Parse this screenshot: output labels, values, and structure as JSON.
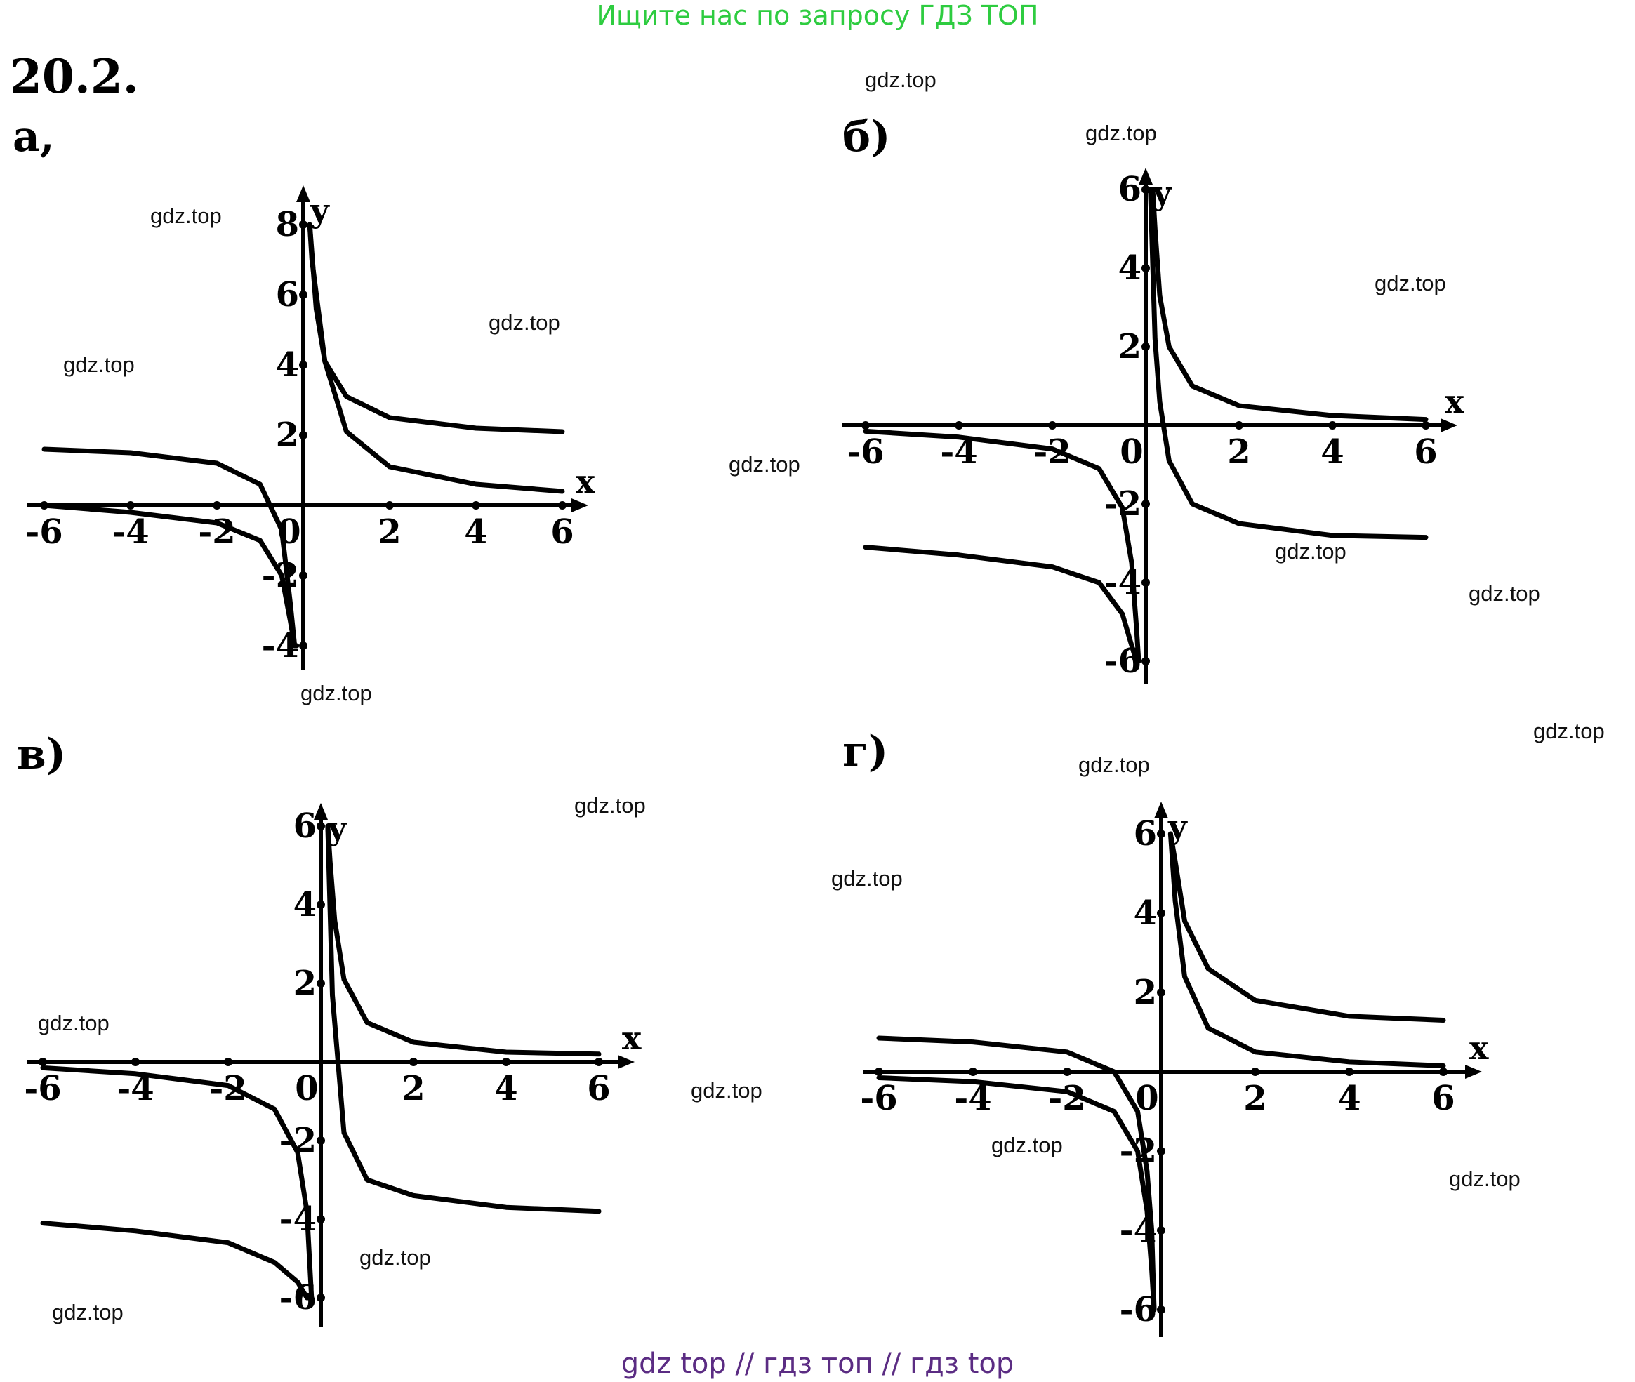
{
  "header": {
    "banner": "Ищите нас по запросу ГДЗ ТОП",
    "problem_number": "20.2."
  },
  "footer": {
    "banner": "gdz top  //  гдз топ  //  гдз top"
  },
  "watermarks": [
    "gdz.top",
    "gdz.top",
    "gdz.top",
    "gdz.top",
    "gdz.top",
    "gdz.top",
    "gdz.top",
    "gdz.top",
    "gdz.top",
    "gdz.top",
    "gdz.top",
    "gdz.top",
    "gdz.top",
    "gdz.top",
    "gdz.top",
    "gdz.top",
    "gdz.top",
    "gdz.top",
    "gdz.top",
    "gdz.top"
  ],
  "colors": {
    "banner": "#2ecc40",
    "footer": "#5b2c83",
    "ink": "#000000"
  },
  "chart_data": [
    {
      "type": "line",
      "panel_label": "а,",
      "xlabel": "x",
      "ylabel": "y",
      "xlim": [
        -6,
        6
      ],
      "ylim": [
        -4,
        8
      ],
      "x_ticks": [
        "-6",
        "-4",
        "-2",
        "0",
        "2",
        "4",
        "6"
      ],
      "y_ticks": [
        "8",
        "6",
        "4",
        "2",
        "-2",
        "-4"
      ],
      "grid": false,
      "series": [
        {
          "x": [
            -6,
            -4,
            -2,
            -1,
            -0.5,
            -0.3,
            -0.2,
            -0.15
          ],
          "y": [
            0,
            -0.2,
            -0.5,
            -1,
            -2,
            -3.3,
            -4,
            -4
          ]
        },
        {
          "x": [
            0.15,
            0.2,
            0.5,
            1,
            2,
            4,
            6
          ],
          "y": [
            8,
            7,
            4.1,
            2.1,
            1.1,
            0.6,
            0.4
          ]
        },
        {
          "x": [
            -6,
            -4,
            -2,
            -1,
            -0.5,
            -0.3,
            -0.2
          ],
          "y": [
            1.6,
            1.5,
            1.2,
            0.6,
            -0.7,
            -2.8,
            -4
          ]
        },
        {
          "x": [
            0.15,
            0.2,
            0.3,
            0.5,
            1,
            2,
            4,
            6
          ],
          "y": [
            8,
            7.2,
            5.6,
            4.1,
            3.1,
            2.5,
            2.2,
            2.1
          ]
        }
      ]
    },
    {
      "type": "line",
      "panel_label": "б)",
      "xlabel": "x",
      "ylabel": "y",
      "xlim": [
        -6,
        6
      ],
      "ylim": [
        -6,
        6
      ],
      "x_ticks": [
        "-6",
        "-4",
        "-2",
        "0",
        "2",
        "4",
        "6"
      ],
      "y_ticks": [
        "6",
        "4",
        "2",
        "-2",
        "-4",
        "-6"
      ],
      "grid": false,
      "series": [
        {
          "x": [
            -6,
            -4,
            -2,
            -1,
            -0.5,
            -0.3,
            -0.2,
            -0.15
          ],
          "y": [
            -0.15,
            -0.3,
            -0.6,
            -1.1,
            -2.1,
            -3.5,
            -5.1,
            -6
          ]
        },
        {
          "x": [
            0.15,
            0.2,
            0.3,
            0.5,
            1,
            2,
            4,
            6
          ],
          "y": [
            6,
            5,
            3.3,
            2,
            1,
            0.5,
            0.25,
            0.15
          ]
        },
        {
          "x": [
            -6,
            -4,
            -2,
            -1,
            -0.5,
            -0.3,
            -0.2
          ],
          "y": [
            -3.1,
            -3.3,
            -3.6,
            -4,
            -4.8,
            -5.6,
            -6
          ]
        },
        {
          "x": [
            0.1,
            0.2,
            0.3,
            0.5,
            1,
            2,
            4,
            6
          ],
          "y": [
            6,
            2.2,
            0.6,
            -0.9,
            -2,
            -2.5,
            -2.8,
            -2.85
          ]
        }
      ]
    },
    {
      "type": "line",
      "panel_label": "в)",
      "xlabel": "x",
      "ylabel": "y",
      "xlim": [
        -6,
        6
      ],
      "ylim": [
        -6,
        6
      ],
      "x_ticks": [
        "-6",
        "-4",
        "-2",
        "0",
        "2",
        "4",
        "6"
      ],
      "y_ticks": [
        "6",
        "4",
        "2",
        "-2",
        "-4",
        "-6"
      ],
      "grid": false,
      "series": [
        {
          "x": [
            -6,
            -4,
            -2,
            -1,
            -0.5,
            -0.3,
            -0.2
          ],
          "y": [
            -0.15,
            -0.3,
            -0.6,
            -1.2,
            -2.3,
            -3.8,
            -6
          ]
        },
        {
          "x": [
            0.15,
            0.2,
            0.3,
            0.5,
            1,
            2,
            4,
            6
          ],
          "y": [
            6,
            5.1,
            3.6,
            2.1,
            1,
            0.5,
            0.25,
            0.2
          ]
        },
        {
          "x": [
            -6,
            -4,
            -2,
            -1,
            -0.5,
            -0.3,
            -0.2
          ],
          "y": [
            -4.1,
            -4.3,
            -4.6,
            -5.1,
            -5.6,
            -6,
            -6
          ]
        },
        {
          "x": [
            0.15,
            0.25,
            0.5,
            1,
            2,
            4,
            6
          ],
          "y": [
            6,
            1.7,
            -1.8,
            -3,
            -3.4,
            -3.7,
            -3.8
          ]
        }
      ]
    },
    {
      "type": "line",
      "panel_label": "г)",
      "xlabel": "x",
      "ylabel": "y",
      "xlim": [
        -6,
        6
      ],
      "ylim": [
        -6,
        6
      ],
      "x_ticks": [
        "-6",
        "-4",
        "-2",
        "0",
        "2",
        "4",
        "6"
      ],
      "y_ticks": [
        "6",
        "4",
        "2",
        "-2",
        "-4",
        "-6"
      ],
      "grid": false,
      "series": [
        {
          "x": [
            -6,
            -4,
            -2,
            -1,
            -0.5,
            -0.3,
            -0.2,
            -0.15
          ],
          "y": [
            -0.15,
            -0.25,
            -0.5,
            -1,
            -2,
            -3.5,
            -5,
            -6
          ]
        },
        {
          "x": [
            0.2,
            0.3,
            0.5,
            1,
            2,
            4,
            6
          ],
          "y": [
            6,
            4.3,
            2.4,
            1.1,
            0.5,
            0.25,
            0.15
          ]
        },
        {
          "x": [
            -6,
            -4,
            -2,
            -1,
            -0.5,
            -0.3,
            -0.2,
            -0.15
          ],
          "y": [
            0.85,
            0.75,
            0.5,
            0,
            -1,
            -2.5,
            -4,
            -6
          ]
        },
        {
          "x": [
            0.2,
            0.3,
            0.5,
            1,
            2,
            4,
            6
          ],
          "y": [
            6,
            5.3,
            3.8,
            2.6,
            1.8,
            1.4,
            1.3
          ]
        }
      ]
    }
  ]
}
